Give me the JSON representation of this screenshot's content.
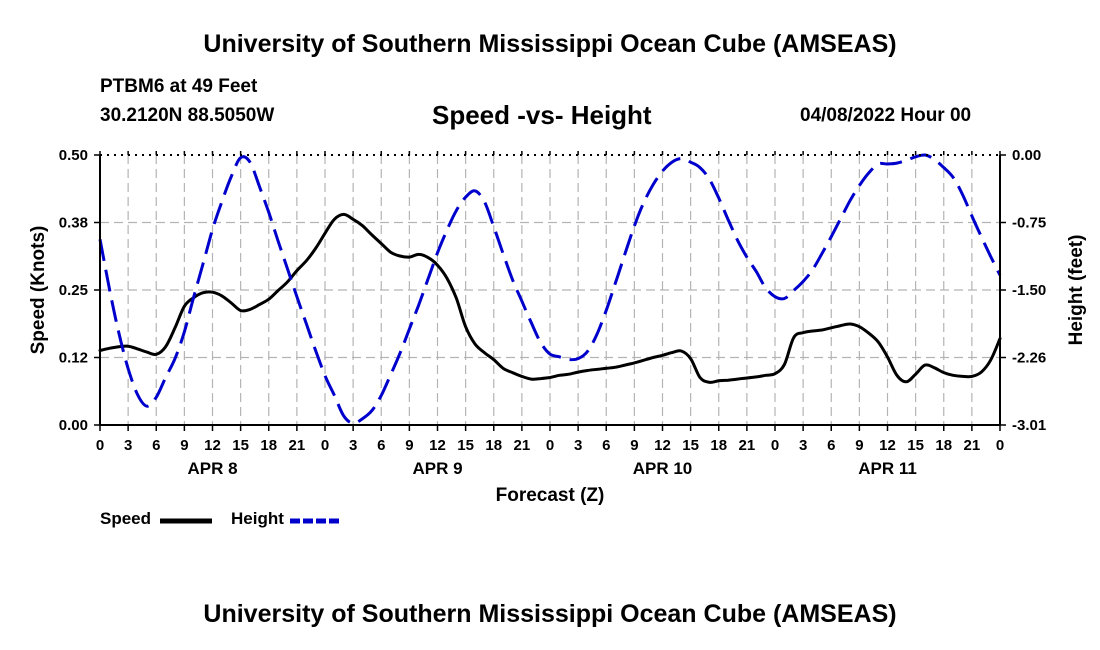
{
  "header": {
    "title": "University of Southern Mississippi Ocean Cube (AMSEAS)",
    "station": "PTBM6 at 49 Feet",
    "coords": "30.2120N  88.5050W",
    "datetime": "04/08/2022 Hour 00"
  },
  "footer": {
    "title": "University of Southern Mississippi Ocean Cube (AMSEAS)"
  },
  "chart_data": {
    "type": "line",
    "title": "Speed -vs- Height",
    "xlabel": "Forecast (Z)",
    "ylabel_left": "Speed (Knots)",
    "ylabel_right": "Height (feet)",
    "x_range_hours": [
      0,
      96
    ],
    "x_tick_step_hours": 3,
    "x_tick_labels": [
      "0",
      "3",
      "6",
      "9",
      "12",
      "15",
      "18",
      "21",
      "0",
      "3",
      "6",
      "9",
      "12",
      "15",
      "18",
      "21",
      "0",
      "3",
      "6",
      "9",
      "12",
      "15",
      "18",
      "21",
      "0",
      "3",
      "6",
      "9",
      "12",
      "15",
      "18",
      "21",
      "0"
    ],
    "day_labels": [
      {
        "label": "APR 8",
        "hour": 12
      },
      {
        "label": "APR 9",
        "hour": 36
      },
      {
        "label": "APR 10",
        "hour": 60
      },
      {
        "label": "APR 11",
        "hour": 84
      }
    ],
    "ylim_left": [
      0,
      0.5
    ],
    "yticks_left": [
      "0.00",
      "0.12",
      "0.25",
      "0.38",
      "0.50"
    ],
    "ylim_right": [
      -3.01,
      0
    ],
    "yticks_right": [
      "-3.01",
      "-2.26",
      "-1.50",
      "-0.75",
      "0.00"
    ],
    "grid": true,
    "legend_position": "bottom-left",
    "series": [
      {
        "name": "Speed",
        "axis": "left",
        "style": "solid",
        "color": "#000000",
        "x": [
          0,
          1,
          2,
          3,
          4,
          5,
          6,
          7,
          8,
          9,
          10,
          11,
          12,
          13,
          14,
          15,
          16,
          17,
          18,
          19,
          20,
          21,
          22,
          23,
          24,
          25,
          26,
          27,
          28,
          29,
          30,
          31,
          32,
          33,
          34,
          35,
          36,
          37,
          38,
          39,
          40,
          41,
          42,
          43,
          44,
          45,
          46,
          47,
          48,
          49,
          50,
          51,
          52,
          53,
          54,
          55,
          56,
          57,
          58,
          59,
          60,
          61,
          62,
          63,
          64,
          65,
          66,
          67,
          68,
          69,
          70,
          71,
          72,
          73,
          74,
          75,
          76,
          77,
          78,
          79,
          80,
          81,
          82,
          83,
          84,
          85,
          86,
          87,
          88,
          89,
          90,
          91,
          92,
          93,
          94,
          95,
          96
        ],
        "values": [
          0.138,
          0.142,
          0.145,
          0.146,
          0.141,
          0.135,
          0.131,
          0.145,
          0.18,
          0.22,
          0.236,
          0.245,
          0.246,
          0.239,
          0.226,
          0.212,
          0.214,
          0.223,
          0.233,
          0.249,
          0.265,
          0.286,
          0.304,
          0.327,
          0.355,
          0.381,
          0.39,
          0.381,
          0.369,
          0.352,
          0.336,
          0.32,
          0.313,
          0.311,
          0.316,
          0.31,
          0.296,
          0.272,
          0.235,
          0.182,
          0.15,
          0.134,
          0.121,
          0.105,
          0.097,
          0.09,
          0.085,
          0.086,
          0.088,
          0.092,
          0.094,
          0.098,
          0.101,
          0.103,
          0.105,
          0.107,
          0.111,
          0.115,
          0.12,
          0.125,
          0.129,
          0.134,
          0.137,
          0.123,
          0.088,
          0.079,
          0.082,
          0.083,
          0.085,
          0.087,
          0.089,
          0.092,
          0.095,
          0.112,
          0.162,
          0.171,
          0.174,
          0.176,
          0.18,
          0.184,
          0.187,
          0.182,
          0.17,
          0.154,
          0.126,
          0.092,
          0.08,
          0.094,
          0.111,
          0.106,
          0.097,
          0.092,
          0.09,
          0.09,
          0.098,
          0.12,
          0.16
        ]
      },
      {
        "name": "Height",
        "axis": "right",
        "style": "dashed",
        "color": "#0000cc",
        "x": [
          0,
          1,
          2,
          3,
          4,
          5,
          6,
          7,
          8,
          9,
          10,
          11,
          12,
          13,
          14,
          15,
          16,
          17,
          18,
          19,
          20,
          21,
          22,
          23,
          24,
          25,
          26,
          27,
          28,
          29,
          30,
          31,
          32,
          33,
          34,
          35,
          36,
          37,
          38,
          39,
          40,
          41,
          42,
          43,
          44,
          45,
          46,
          47,
          48,
          49,
          50,
          51,
          52,
          53,
          54,
          55,
          56,
          57,
          58,
          59,
          60,
          61,
          62,
          63,
          64,
          65,
          66,
          67,
          68,
          69,
          70,
          71,
          72,
          73,
          74,
          75,
          76,
          77,
          78,
          79,
          80,
          81,
          82,
          83,
          84,
          85,
          86,
          87,
          88,
          89,
          90,
          91,
          92,
          93,
          94,
          95,
          96
        ],
        "values": [
          -0.94,
          -1.49,
          -1.98,
          -2.38,
          -2.67,
          -2.8,
          -2.7,
          -2.48,
          -2.27,
          -1.97,
          -1.58,
          -1.21,
          -0.83,
          -0.52,
          -0.24,
          -0.03,
          -0.08,
          -0.35,
          -0.64,
          -0.96,
          -1.27,
          -1.58,
          -1.88,
          -2.18,
          -2.46,
          -2.68,
          -2.91,
          -2.99,
          -2.94,
          -2.85,
          -2.68,
          -2.45,
          -2.21,
          -1.94,
          -1.67,
          -1.38,
          -1.09,
          -0.84,
          -0.62,
          -0.47,
          -0.4,
          -0.52,
          -0.8,
          -1.1,
          -1.39,
          -1.63,
          -1.87,
          -2.09,
          -2.22,
          -2.25,
          -2.28,
          -2.27,
          -2.19,
          -2.0,
          -1.73,
          -1.42,
          -1.1,
          -0.79,
          -0.53,
          -0.33,
          -0.18,
          -0.08,
          -0.04,
          -0.08,
          -0.14,
          -0.27,
          -0.48,
          -0.72,
          -0.95,
          -1.14,
          -1.3,
          -1.48,
          -1.58,
          -1.6,
          -1.51,
          -1.41,
          -1.28,
          -1.1,
          -0.91,
          -0.71,
          -0.51,
          -0.34,
          -0.2,
          -0.1,
          -0.1,
          -0.09,
          -0.06,
          -0.02,
          0.0,
          -0.05,
          -0.14,
          -0.25,
          -0.44,
          -0.68,
          -0.91,
          -1.13,
          -1.34
        ]
      }
    ]
  }
}
